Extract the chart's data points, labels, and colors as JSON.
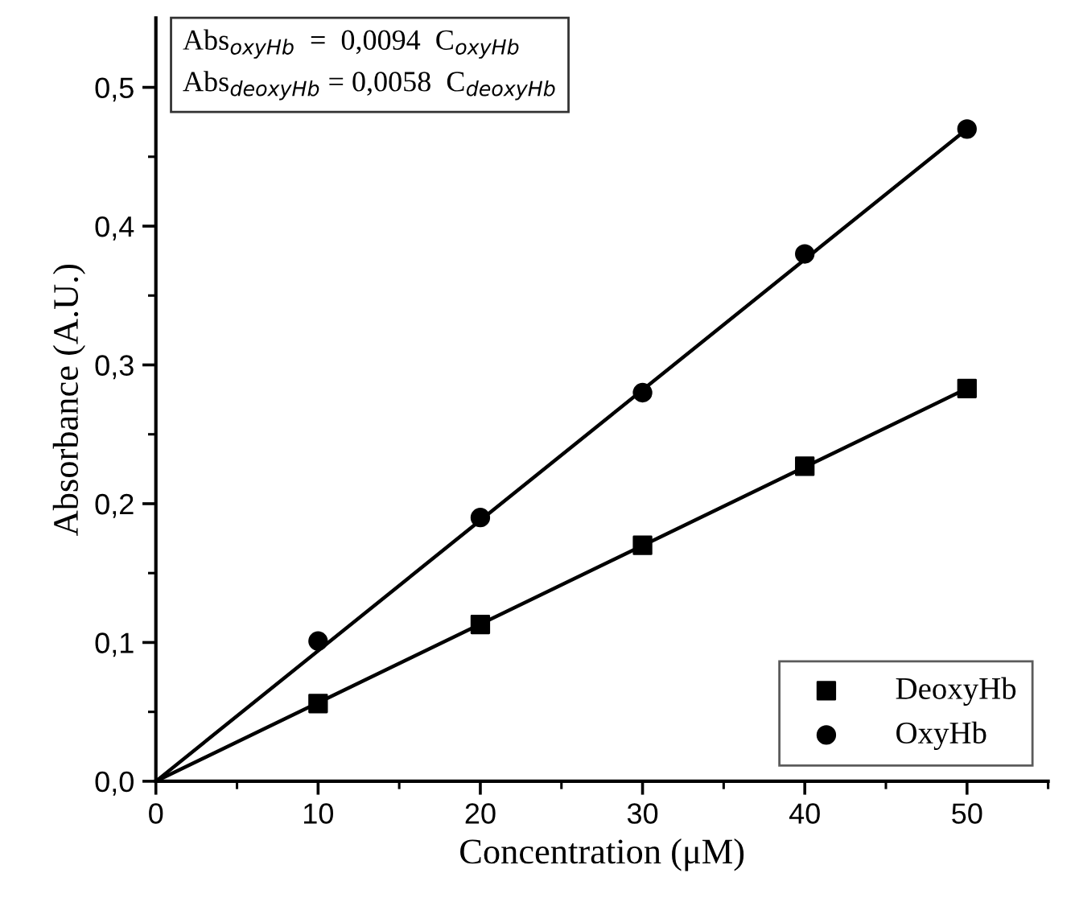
{
  "chart_data": {
    "type": "scatter",
    "xlabel": "Concentration (μM)",
    "ylabel": "Absorbance (A.U.)",
    "series": [
      {
        "name": "DeoxyHb",
        "color": "#000000",
        "marker": "square",
        "x": [
          10,
          20,
          30,
          40,
          50
        ],
        "values": [
          0.056,
          0.113,
          0.17,
          0.227,
          0.283
        ]
      },
      {
        "name": "OxyHb",
        "color": "#000000",
        "marker": "circle",
        "x": [
          10,
          20,
          30,
          40,
          50
        ],
        "values": [
          0.101,
          0.19,
          0.28,
          0.38,
          0.47
        ]
      },
      {
        "type": "line",
        "color": "#000000",
        "x": [
          0,
          50
        ],
        "values": [
          0,
          0.283
        ]
      },
      {
        "type": "line",
        "color": "#000000",
        "x": [
          0,
          50
        ],
        "values": [
          0,
          0.47
        ]
      }
    ],
    "annotations": [
      "Abs$_{oxyHb}$  =  0,0094  C$_{oxyHb}$",
      "Abs$_{deoxyHb}$ = 0,0058  C$_{deoxyHb}$"
    ],
    "xlim": [
      0,
      55
    ],
    "xticks": [
      0,
      10,
      20,
      30,
      40,
      50
    ],
    "ylim": [
      0,
      0.55
    ],
    "yticks": [
      {
        "value": 0,
        "label": "0,0"
      },
      {
        "value": 0.1,
        "label": "0,1"
      },
      {
        "value": 0.2,
        "label": "0,2"
      },
      {
        "value": 0.3,
        "label": "0,3"
      },
      {
        "value": 0.4,
        "label": "0,4"
      },
      {
        "value": 0.5,
        "label": "0,5"
      }
    ],
    "grid": false,
    "legend": "bottom right"
  }
}
